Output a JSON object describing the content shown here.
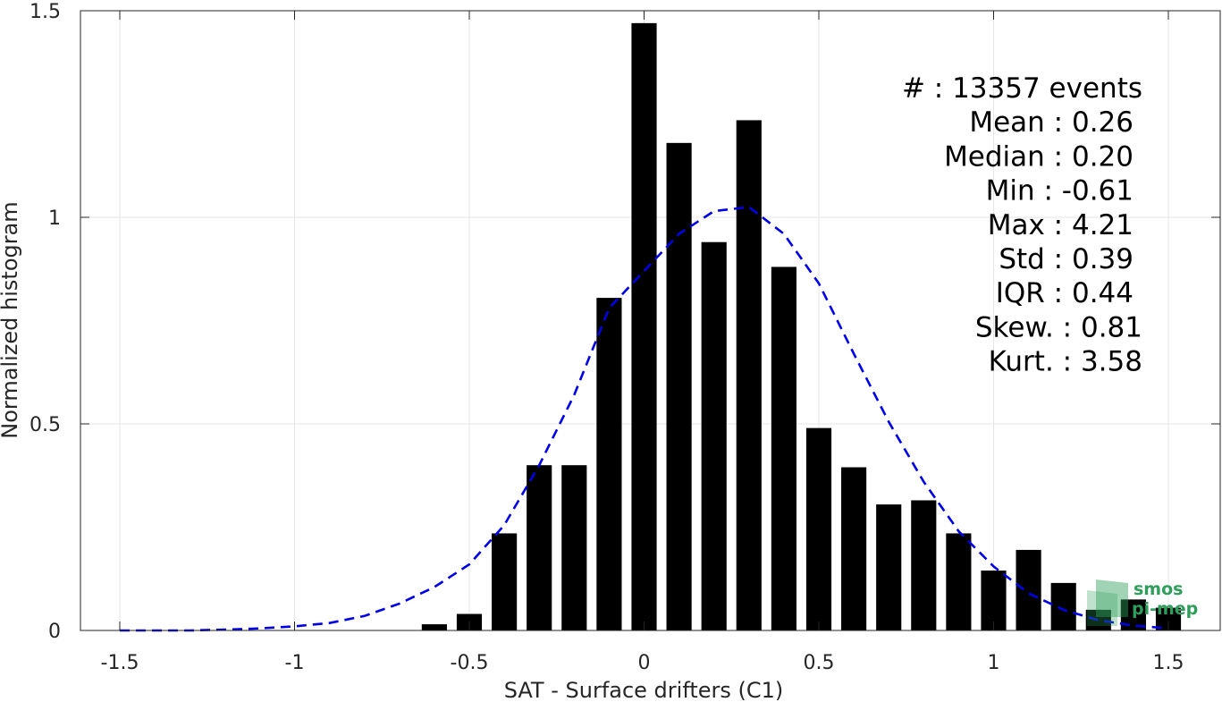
{
  "chart_data": {
    "type": "bar",
    "xlabel": "SAT - Surface drifters (C1)",
    "ylabel": "Normalized histogram",
    "xlim": [
      -1.5,
      1.5
    ],
    "ylim": [
      0,
      1.5
    ],
    "x_ticks": [
      "-1.5",
      "-1",
      "-0.5",
      "0",
      "0.5",
      "1",
      "1.5"
    ],
    "y_ticks": [
      "0",
      "0.5",
      "1",
      "1.5"
    ],
    "grid": true,
    "bar_color": "#000000",
    "bin_centers": [
      -0.6,
      -0.5,
      -0.4,
      -0.3,
      -0.2,
      -0.1,
      0.0,
      0.1,
      0.2,
      0.3,
      0.4,
      0.5,
      0.6,
      0.7,
      0.8,
      0.9,
      1.0,
      1.1,
      1.2,
      1.3,
      1.4,
      1.5
    ],
    "values": [
      0.015,
      0.04,
      0.235,
      0.4,
      0.4,
      0.805,
      1.47,
      1.18,
      0.94,
      1.235,
      0.88,
      0.49,
      0.395,
      0.305,
      0.315,
      0.235,
      0.145,
      0.195,
      0.115,
      0.05,
      0.075,
      0.055
    ],
    "fit_curve": {
      "style": "dashed",
      "color": "#0000e6",
      "x": [
        -1.5,
        -1.4,
        -1.3,
        -1.2,
        -1.1,
        -1.0,
        -0.9,
        -0.8,
        -0.7,
        -0.6,
        -0.5,
        -0.4,
        -0.3,
        -0.2,
        -0.1,
        0.0,
        0.1,
        0.2,
        0.3,
        0.4,
        0.5,
        0.6,
        0.7,
        0.8,
        0.9,
        1.0,
        1.1,
        1.2,
        1.3,
        1.4,
        1.5
      ],
      "y": [
        0.0,
        0.0,
        0.0,
        0.002,
        0.005,
        0.01,
        0.018,
        0.035,
        0.065,
        0.105,
        0.16,
        0.255,
        0.4,
        0.57,
        0.78,
        0.87,
        0.96,
        1.015,
        1.025,
        0.96,
        0.84,
        0.67,
        0.505,
        0.36,
        0.24,
        0.155,
        0.09,
        0.05,
        0.025,
        0.012,
        0.005
      ]
    },
    "stats": [
      {
        "label": "#  : 13357 events"
      },
      {
        "label": "Mean : 0.26"
      },
      {
        "label": "Median : 0.20"
      },
      {
        "label": "Min : -0.61"
      },
      {
        "label": "Max : 4.21"
      },
      {
        "label": "Std : 0.39"
      },
      {
        "label": "IQR : 0.44"
      },
      {
        "label": "Skew. : 0.81"
      },
      {
        "label": "Kurt. : 3.58"
      }
    ]
  },
  "logo": {
    "line1": "smos",
    "line2": "pi-mep",
    "color": "#2e9e5b"
  }
}
